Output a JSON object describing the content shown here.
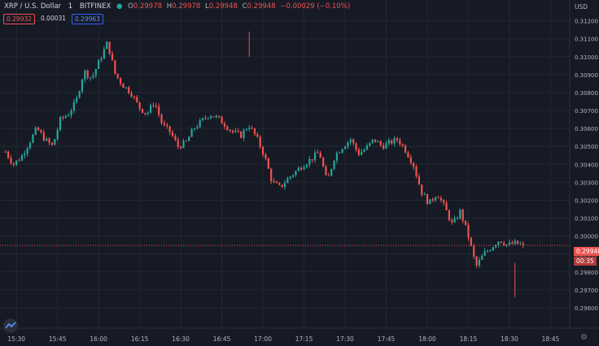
{
  "header": {
    "symbol": "XRP / U.S. Dollar",
    "interval": "1",
    "exchange": "BITFINEX",
    "o_label": "O",
    "o_value": "0.29978",
    "h_label": "H",
    "h_value": "0.29978",
    "l_label": "L",
    "l_value": "0.29948",
    "c_label": "C",
    "c_value": "0.29948",
    "change": "−0.00029 (−0.10%)"
  },
  "price_boxes": {
    "bid": "0.29932",
    "spread": "0.00031",
    "ask": "0.29963"
  },
  "currency": "USD",
  "last_price": {
    "price": "0.29948",
    "countdown": "00:35",
    "value": 0.29948
  },
  "colors": {
    "bg": "#161a25",
    "grid": "#232734",
    "up": "#26a69a",
    "down": "#ef5350",
    "text": "#b2b5be"
  },
  "icons": {
    "logo": "tradingview-logo-icon",
    "settings": "gear-icon"
  },
  "chart_data": {
    "type": "candlestick",
    "ylim": [
      0.2955,
      0.3128
    ],
    "y_ticks": [
      "0.31200",
      "0.31100",
      "0.31000",
      "0.30900",
      "0.30800",
      "0.30700",
      "0.30600",
      "0.30500",
      "0.30400",
      "0.30300",
      "0.30200",
      "0.30100",
      "0.30000",
      "0.29900",
      "0.29800",
      "0.29700",
      "0.29600"
    ],
    "x_ticks": [
      "15:30",
      "15:45",
      "16:00",
      "16:15",
      "16:30",
      "16:45",
      "17:00",
      "17:15",
      "17:30",
      "17:45",
      "18:00",
      "18:15",
      "18:30",
      "18:45"
    ],
    "x_range_minutes": [
      924,
      1132
    ],
    "x_tick_start_minute": 930,
    "x_tick_step_minutes": 15,
    "close_path": [
      0.3047,
      0.304,
      0.3044,
      0.3052,
      0.306,
      0.3054,
      0.305,
      0.3065,
      0.3068,
      0.3075,
      0.3092,
      0.3088,
      0.3098,
      0.3108,
      0.309,
      0.3084,
      0.308,
      0.3072,
      0.3068,
      0.3075,
      0.3062,
      0.3058,
      0.305,
      0.3052,
      0.306,
      0.3064,
      0.3068,
      0.3066,
      0.3062,
      0.3058,
      0.3056,
      0.3062,
      0.3055,
      0.3045,
      0.303,
      0.3027,
      0.3032,
      0.3036,
      0.304,
      0.3043,
      0.3047,
      0.303,
      0.3045,
      0.305,
      0.3054,
      0.3046,
      0.3049,
      0.3054,
      0.305,
      0.3052,
      0.3054,
      0.3048,
      0.304,
      0.3025,
      0.3018,
      0.3024,
      0.3016,
      0.3006,
      0.3014,
      0.3,
      0.2983,
      0.299,
      0.2994,
      0.2998,
      0.2995,
      0.2996,
      0.2995
    ],
    "last_close": 0.29948
  }
}
